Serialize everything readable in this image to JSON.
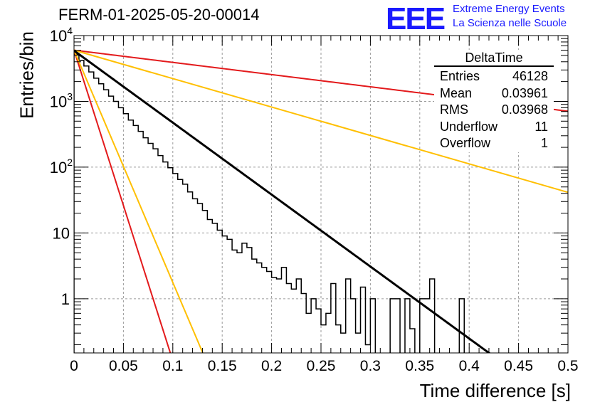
{
  "header": {
    "title": "FERM-01-2025-05-20-00014",
    "logo": "EEE",
    "logo_line1": "Extreme Energy Events",
    "logo_line2": "La Scienza nelle Scuole",
    "logo_color": "#1a1aff"
  },
  "stats_box": {
    "name": "DeltaTime",
    "rows": [
      {
        "label": "Entries",
        "value": "46128"
      },
      {
        "label": "Mean",
        "value": "0.03961"
      },
      {
        "label": "RMS",
        "value": "0.03968"
      },
      {
        "label": "Underflow",
        "value": "11"
      },
      {
        "label": "Overflow",
        "value": "1"
      }
    ]
  },
  "chart_data": {
    "type": "line",
    "title": "FERM-01-2025-05-20-00014",
    "xlabel": "Time difference [s]",
    "ylabel": "Entries/bin",
    "xlim": [
      0,
      0.5
    ],
    "ylim": [
      0.15,
      10000
    ],
    "yscale": "log",
    "grid": true,
    "x_ticks": [
      "0",
      "0.05",
      "0.1",
      "0.15",
      "0.2",
      "0.25",
      "0.3",
      "0.35",
      "0.4",
      "0.45",
      "0.5"
    ],
    "y_ticks": [
      {
        "value": 1,
        "label": "1"
      },
      {
        "value": 10,
        "label": "10"
      },
      {
        "value": 100,
        "label": "10^2"
      },
      {
        "value": 1000,
        "label": "10^3"
      },
      {
        "value": 10000,
        "label": "10^4"
      }
    ],
    "histogram": {
      "bin_width": 0.005,
      "color": "#000000",
      "counts": [
        5200,
        4200,
        3450,
        2800,
        2250,
        1850,
        1500,
        1200,
        1000,
        800,
        650,
        520,
        430,
        350,
        280,
        230,
        190,
        150,
        120,
        98,
        80,
        65,
        55,
        42,
        33,
        28,
        22,
        16,
        14,
        11,
        9,
        8,
        5.5,
        5,
        7,
        6,
        4,
        3.5,
        3,
        2.6,
        2.1,
        2,
        3,
        1.7,
        1.4,
        2,
        1.2,
        0.6,
        1,
        0.7,
        0.4,
        0.6,
        1.7,
        0.4,
        0.3,
        2,
        1,
        0.3,
        1.5,
        0.2,
        1,
        0,
        0,
        0,
        1,
        1,
        0,
        1,
        0.35,
        0,
        1,
        1,
        2,
        0,
        0,
        0,
        0,
        0,
        1,
        0,
        0,
        0,
        0,
        0,
        0,
        0,
        0,
        0,
        0,
        0,
        0,
        0,
        0,
        0,
        0,
        0,
        0,
        0,
        0,
        0
      ]
    },
    "fit": {
      "color": "#000000",
      "A": 5900,
      "tau": 0.0397
    },
    "series": [
      {
        "color": "#e31a1c",
        "A": 6000,
        "tau": 0.0092
      },
      {
        "color": "#ffbf00",
        "A": 6000,
        "tau": 0.0123
      },
      {
        "color": "#e31a1c",
        "A": 6000,
        "tau": 0.234
      },
      {
        "color": "#ffbf00",
        "A": 6000,
        "tau": 0.1005
      }
    ]
  }
}
